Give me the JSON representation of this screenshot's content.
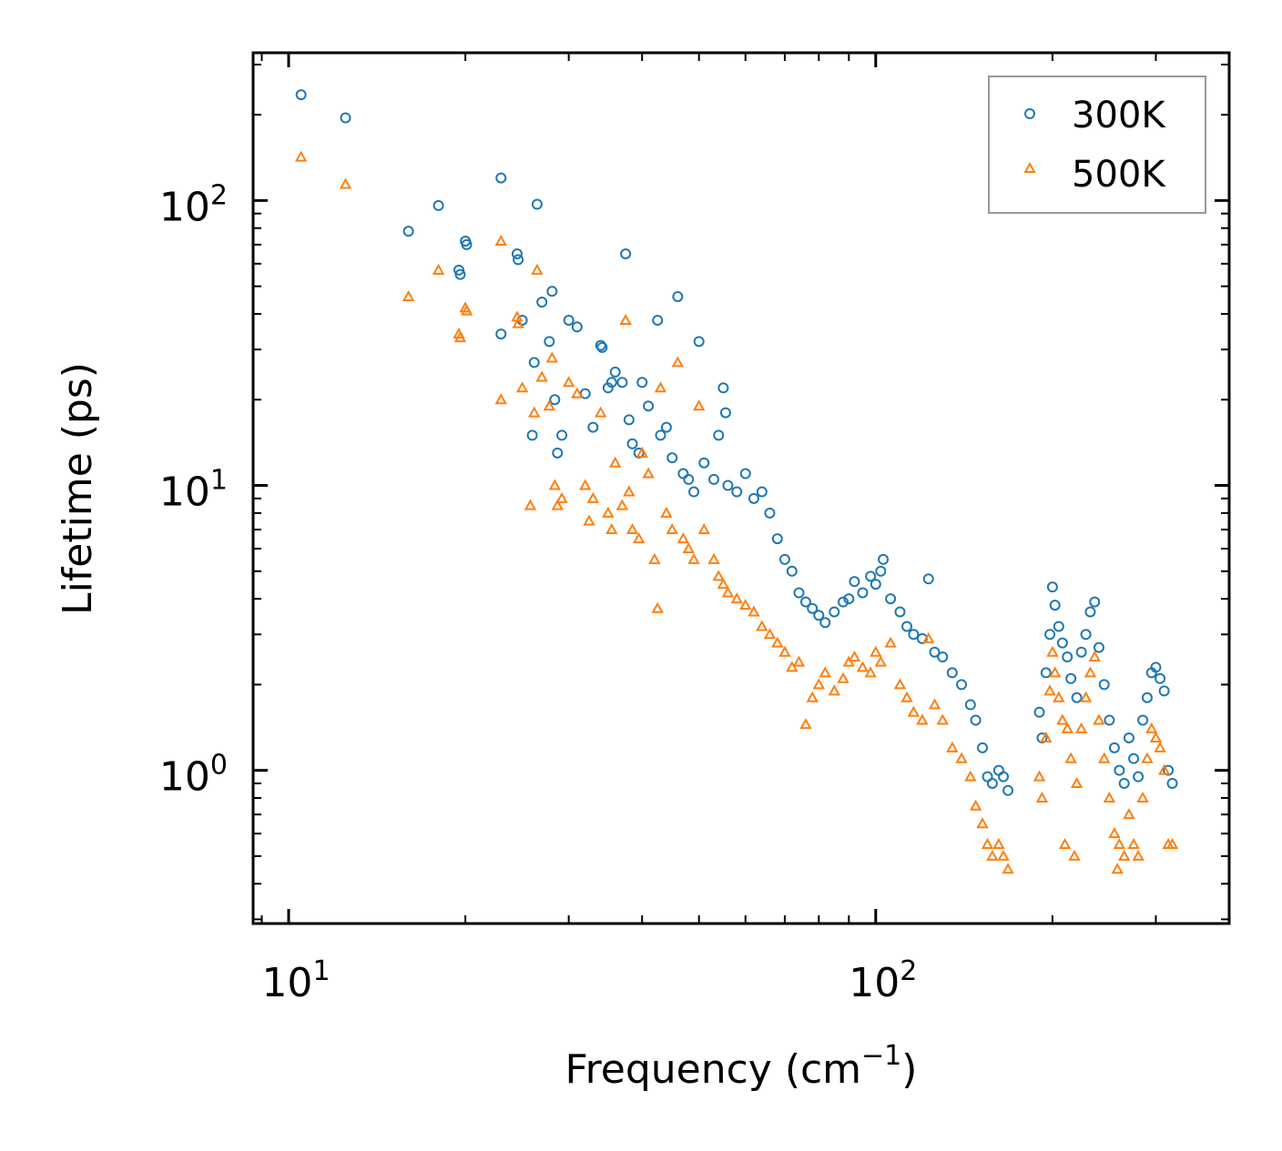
{
  "chart_data": {
    "type": "scatter",
    "xscale": "log",
    "yscale": "log",
    "xlim": [
      8.7,
      400
    ],
    "ylim": [
      0.29,
      330
    ],
    "xlabel": "Frequency (cm",
    "xlabel_sup": "−1",
    "xlabel_close": ")",
    "ylabel": "Lifetime (ps)",
    "xticks": [
      {
        "base": "10",
        "exp": "1",
        "value": 10
      },
      {
        "base": "10",
        "exp": "2",
        "value": 100
      }
    ],
    "yticks": [
      {
        "base": "10",
        "exp": "0",
        "value": 1
      },
      {
        "base": "10",
        "exp": "1",
        "value": 10
      },
      {
        "base": "10",
        "exp": "2",
        "value": 100
      }
    ],
    "legend": {
      "location": "top-right"
    },
    "series": [
      {
        "name": "300K",
        "color": "#1f77b4",
        "marker": "circle",
        "points": [
          [
            10.5,
            235
          ],
          [
            12.5,
            195
          ],
          [
            16,
            78
          ],
          [
            18,
            96
          ],
          [
            19.5,
            57
          ],
          [
            19.6,
            55
          ],
          [
            20,
            72
          ],
          [
            20.1,
            70
          ],
          [
            23,
            120
          ],
          [
            23,
            34
          ],
          [
            24.5,
            65
          ],
          [
            24.6,
            62
          ],
          [
            25,
            38
          ],
          [
            26,
            15
          ],
          [
            26.2,
            27
          ],
          [
            26.5,
            97
          ],
          [
            27,
            44
          ],
          [
            27.8,
            32
          ],
          [
            28.1,
            48
          ],
          [
            28.4,
            20
          ],
          [
            28.7,
            13
          ],
          [
            29.2,
            15
          ],
          [
            30,
            38
          ],
          [
            31,
            36
          ],
          [
            32,
            21
          ],
          [
            33,
            16
          ],
          [
            34,
            31
          ],
          [
            34.2,
            30.5
          ],
          [
            35,
            22
          ],
          [
            35.5,
            23
          ],
          [
            36,
            25
          ],
          [
            37,
            23
          ],
          [
            37.5,
            65
          ],
          [
            38,
            17
          ],
          [
            38.5,
            14
          ],
          [
            39.5,
            13
          ],
          [
            40,
            23
          ],
          [
            41,
            19
          ],
          [
            42.5,
            38
          ],
          [
            43,
            15
          ],
          [
            44,
            16
          ],
          [
            45,
            12.5
          ],
          [
            46,
            46
          ],
          [
            47,
            11
          ],
          [
            48,
            10.5
          ],
          [
            49,
            9.5
          ],
          [
            50,
            32
          ],
          [
            51,
            12
          ],
          [
            53,
            10.5
          ],
          [
            54,
            15
          ],
          [
            55,
            22
          ],
          [
            55.5,
            18
          ],
          [
            56,
            10
          ],
          [
            58,
            9.5
          ],
          [
            60,
            11
          ],
          [
            62,
            9
          ],
          [
            64,
            9.5
          ],
          [
            66,
            8
          ],
          [
            68,
            6.5
          ],
          [
            70,
            5.5
          ],
          [
            72,
            5
          ],
          [
            74,
            4.2
          ],
          [
            76,
            3.9
          ],
          [
            78,
            3.7
          ],
          [
            80,
            3.5
          ],
          [
            82,
            3.3
          ],
          [
            85,
            3.6
          ],
          [
            88,
            3.9
          ],
          [
            90,
            4.0
          ],
          [
            92,
            4.6
          ],
          [
            95,
            4.2
          ],
          [
            98,
            4.8
          ],
          [
            100,
            4.5
          ],
          [
            102,
            5.0
          ],
          [
            103,
            5.5
          ],
          [
            106,
            4.0
          ],
          [
            110,
            3.6
          ],
          [
            113,
            3.2
          ],
          [
            116,
            3.0
          ],
          [
            120,
            2.9
          ],
          [
            123,
            4.7
          ],
          [
            126,
            2.6
          ],
          [
            130,
            2.5
          ],
          [
            135,
            2.2
          ],
          [
            140,
            2.0
          ],
          [
            145,
            1.7
          ],
          [
            148,
            1.5
          ],
          [
            152,
            1.2
          ],
          [
            155,
            0.95
          ],
          [
            158,
            0.9
          ],
          [
            162,
            1.0
          ],
          [
            165,
            0.95
          ],
          [
            168,
            0.85
          ],
          [
            190,
            1.6
          ],
          [
            192,
            1.3
          ],
          [
            195,
            2.2
          ],
          [
            198,
            3.0
          ],
          [
            200,
            4.4
          ],
          [
            202,
            3.8
          ],
          [
            205,
            3.2
          ],
          [
            208,
            2.8
          ],
          [
            212,
            2.5
          ],
          [
            215,
            2.1
          ],
          [
            220,
            1.8
          ],
          [
            224,
            2.6
          ],
          [
            228,
            3.0
          ],
          [
            232,
            3.6
          ],
          [
            236,
            3.9
          ],
          [
            240,
            2.7
          ],
          [
            245,
            2.0
          ],
          [
            250,
            1.5
          ],
          [
            255,
            1.2
          ],
          [
            260,
            1.0
          ],
          [
            265,
            0.9
          ],
          [
            270,
            1.3
          ],
          [
            275,
            1.1
          ],
          [
            280,
            0.95
          ],
          [
            285,
            1.5
          ],
          [
            290,
            1.8
          ],
          [
            295,
            2.2
          ],
          [
            300,
            2.3
          ],
          [
            305,
            2.1
          ],
          [
            310,
            1.9
          ],
          [
            315,
            1.0
          ],
          [
            320,
            0.9
          ]
        ]
      },
      {
        "name": "500K",
        "color": "#ff7f0e",
        "marker": "triangle",
        "points": [
          [
            10.5,
            142
          ],
          [
            12.5,
            114
          ],
          [
            16,
            46
          ],
          [
            18,
            57
          ],
          [
            19.5,
            34
          ],
          [
            19.6,
            33
          ],
          [
            20,
            42
          ],
          [
            20.1,
            41
          ],
          [
            23,
            72
          ],
          [
            23,
            20
          ],
          [
            24.5,
            39
          ],
          [
            24.6,
            37
          ],
          [
            25,
            22
          ],
          [
            25.8,
            8.5
          ],
          [
            26.2,
            18
          ],
          [
            26.5,
            57
          ],
          [
            27,
            24
          ],
          [
            27.8,
            19
          ],
          [
            28.1,
            28
          ],
          [
            28.4,
            10
          ],
          [
            28.7,
            8.5
          ],
          [
            29.2,
            9
          ],
          [
            30,
            23
          ],
          [
            31,
            21
          ],
          [
            32,
            10
          ],
          [
            32.5,
            7.5
          ],
          [
            33,
            9
          ],
          [
            34,
            18
          ],
          [
            35,
            8
          ],
          [
            35.5,
            7
          ],
          [
            36,
            12
          ],
          [
            37,
            8.5
          ],
          [
            37.5,
            38
          ],
          [
            38,
            9.5
          ],
          [
            38.5,
            7
          ],
          [
            39.5,
            6.5
          ],
          [
            40,
            13
          ],
          [
            41,
            11
          ],
          [
            42,
            5.5
          ],
          [
            42.5,
            3.7
          ],
          [
            43,
            22
          ],
          [
            44,
            8
          ],
          [
            45,
            7
          ],
          [
            46,
            27
          ],
          [
            47,
            6.5
          ],
          [
            48,
            6
          ],
          [
            49,
            5.5
          ],
          [
            50,
            19
          ],
          [
            51,
            7
          ],
          [
            53,
            5.5
          ],
          [
            54,
            4.8
          ],
          [
            55,
            4.5
          ],
          [
            56,
            4.2
          ],
          [
            58,
            4.0
          ],
          [
            60,
            3.8
          ],
          [
            62,
            3.6
          ],
          [
            64,
            3.2
          ],
          [
            66,
            3.0
          ],
          [
            68,
            2.8
          ],
          [
            70,
            2.6
          ],
          [
            72,
            2.3
          ],
          [
            74,
            2.4
          ],
          [
            76,
            1.45
          ],
          [
            78,
            1.8
          ],
          [
            80,
            2.0
          ],
          [
            82,
            2.2
          ],
          [
            85,
            1.9
          ],
          [
            88,
            2.1
          ],
          [
            90,
            2.4
          ],
          [
            92,
            2.5
          ],
          [
            95,
            2.3
          ],
          [
            98,
            2.2
          ],
          [
            100,
            2.6
          ],
          [
            102,
            2.4
          ],
          [
            106,
            2.8
          ],
          [
            110,
            2.0
          ],
          [
            113,
            1.8
          ],
          [
            116,
            1.6
          ],
          [
            120,
            1.5
          ],
          [
            123,
            2.9
          ],
          [
            126,
            1.7
          ],
          [
            130,
            1.5
          ],
          [
            135,
            1.2
          ],
          [
            140,
            1.1
          ],
          [
            145,
            0.95
          ],
          [
            148,
            0.75
          ],
          [
            152,
            0.65
          ],
          [
            155,
            0.55
          ],
          [
            158,
            0.5
          ],
          [
            162,
            0.55
          ],
          [
            165,
            0.5
          ],
          [
            168,
            0.45
          ],
          [
            190,
            0.95
          ],
          [
            192,
            0.8
          ],
          [
            195,
            1.3
          ],
          [
            198,
            1.9
          ],
          [
            200,
            2.6
          ],
          [
            202,
            2.2
          ],
          [
            205,
            1.8
          ],
          [
            208,
            1.5
          ],
          [
            210,
            0.55
          ],
          [
            212,
            1.4
          ],
          [
            215,
            1.1
          ],
          [
            218,
            0.5
          ],
          [
            220,
            0.9
          ],
          [
            224,
            1.4
          ],
          [
            228,
            1.8
          ],
          [
            232,
            2.2
          ],
          [
            236,
            2.5
          ],
          [
            240,
            1.5
          ],
          [
            245,
            1.1
          ],
          [
            250,
            0.8
          ],
          [
            255,
            0.6
          ],
          [
            258,
            0.45
          ],
          [
            260,
            0.55
          ],
          [
            265,
            0.5
          ],
          [
            270,
            0.7
          ],
          [
            275,
            0.55
          ],
          [
            280,
            0.5
          ],
          [
            285,
            0.8
          ],
          [
            290,
            1.1
          ],
          [
            295,
            1.4
          ],
          [
            300,
            1.3
          ],
          [
            305,
            1.2
          ],
          [
            310,
            1.0
          ],
          [
            315,
            0.55
          ],
          [
            320,
            0.55
          ]
        ]
      }
    ]
  }
}
